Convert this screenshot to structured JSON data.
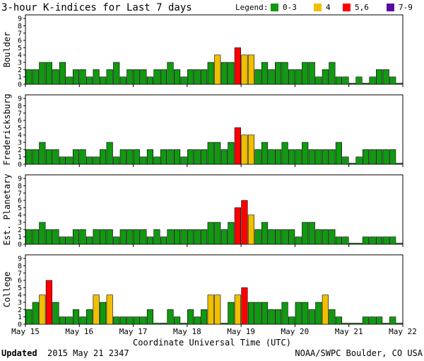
{
  "title": "3-hour K-indices for Last 7 days",
  "legend": {
    "label": "Legend:",
    "items": [
      {
        "label": "0-3",
        "color": "#119911"
      },
      {
        "label": "4",
        "color": "#f0c000"
      },
      {
        "label": "5,6",
        "color": "#ff0000"
      },
      {
        "label": "7-9",
        "color": "#5a0aa0"
      }
    ]
  },
  "footer": {
    "updated_label": "Updated",
    "updated_value": "2015 May 21 2347",
    "source": "NOAA/SWPC Boulder, CO USA"
  },
  "chart_data": [
    {
      "type": "bar",
      "title": "Boulder",
      "xlabel": "Coordinate Universal Time (UTC)",
      "ylabel": "Boulder",
      "ylim": [
        0,
        9
      ],
      "x_ticks": [
        "May 15",
        "May 16",
        "May 17",
        "May 18",
        "May 19",
        "May 20",
        "May 21",
        "May 22"
      ],
      "values": [
        2,
        2,
        3,
        3,
        2,
        3,
        1,
        2,
        2,
        1,
        2,
        1,
        2,
        3,
        1,
        2,
        2,
        2,
        1,
        2,
        2,
        3,
        2,
        1,
        2,
        2,
        2,
        3,
        4,
        3,
        3,
        5,
        4,
        4,
        2,
        3,
        2,
        3,
        3,
        2,
        2,
        3,
        3,
        1,
        2,
        3,
        1,
        1,
        0,
        1,
        0,
        1,
        2,
        2,
        1,
        0
      ]
    },
    {
      "type": "bar",
      "title": "Fredericksburg",
      "xlabel": "Coordinate Universal Time (UTC)",
      "ylabel": "Fredericksburg",
      "ylim": [
        0,
        9
      ],
      "x_ticks": [
        "May 15",
        "May 16",
        "May 17",
        "May 18",
        "May 19",
        "May 20",
        "May 21",
        "May 22"
      ],
      "values": [
        2,
        2,
        3,
        2,
        2,
        1,
        1,
        2,
        2,
        1,
        1,
        2,
        3,
        1,
        2,
        2,
        2,
        1,
        2,
        1,
        2,
        2,
        2,
        1,
        2,
        2,
        2,
        3,
        3,
        2,
        3,
        5,
        4,
        4,
        2,
        3,
        2,
        2,
        3,
        2,
        2,
        3,
        2,
        2,
        2,
        2,
        3,
        1,
        0,
        1,
        2,
        2,
        2,
        2,
        2,
        0
      ]
    },
    {
      "type": "bar",
      "title": "Est. Planetary",
      "xlabel": "Coordinate Universal Time (UTC)",
      "ylabel": "Est. Planetary",
      "ylim": [
        0,
        9
      ],
      "x_ticks": [
        "May 15",
        "May 16",
        "May 17",
        "May 18",
        "May 19",
        "May 20",
        "May 21",
        "May 22"
      ],
      "values": [
        2,
        2,
        3,
        2,
        2,
        1,
        1,
        2,
        2,
        1,
        2,
        2,
        2,
        1,
        2,
        2,
        2,
        2,
        1,
        2,
        1,
        2,
        2,
        2,
        2,
        2,
        2,
        3,
        3,
        2,
        3,
        5,
        6,
        4,
        2,
        3,
        2,
        2,
        2,
        2,
        1,
        3,
        3,
        2,
        2,
        2,
        1,
        1,
        0,
        0,
        1,
        1,
        1,
        1,
        1,
        0
      ]
    },
    {
      "type": "bar",
      "title": "College",
      "xlabel": "Coordinate Universal Time (UTC)",
      "ylabel": "College",
      "ylim": [
        0,
        9
      ],
      "x_ticks": [
        "May 15",
        "May 16",
        "May 17",
        "May 18",
        "May 19",
        "May 20",
        "May 21",
        "May 22"
      ],
      "values": [
        2,
        3,
        4,
        6,
        3,
        1,
        1,
        2,
        1,
        2,
        4,
        3,
        4,
        1,
        1,
        1,
        1,
        1,
        2,
        0,
        0,
        2,
        1,
        0,
        2,
        1,
        2,
        4,
        4,
        0,
        3,
        4,
        5,
        3,
        3,
        3,
        2,
        2,
        3,
        1,
        3,
        3,
        2,
        3,
        4,
        2,
        1,
        0,
        0,
        0,
        1,
        1,
        1,
        0,
        1,
        0
      ]
    }
  ]
}
